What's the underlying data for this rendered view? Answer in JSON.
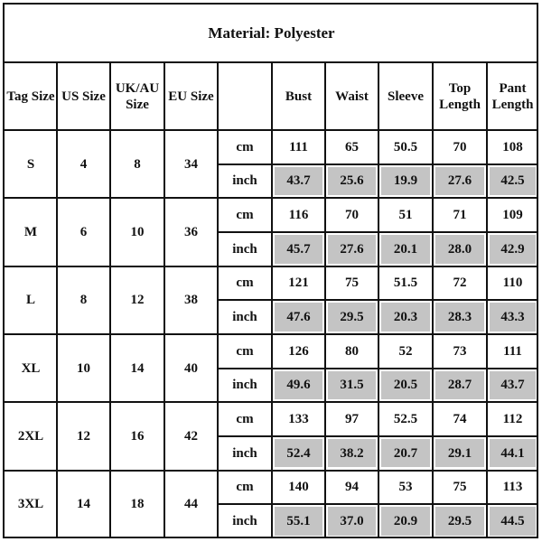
{
  "title": "Material: Polyester",
  "headers": [
    "Tag Size",
    "US Size",
    "UK/AU Size",
    "EU Size",
    "",
    "Bust",
    "Waist",
    "Sleeve",
    "Top Length",
    "Pant Length"
  ],
  "units": [
    "cm",
    "inch"
  ],
  "shade_color": "#c4c4c4",
  "rows": [
    {
      "tag": "S",
      "us": "4",
      "uk": "8",
      "eu": "34",
      "cm": [
        "111",
        "65",
        "50.5",
        "70",
        "108"
      ],
      "inch": [
        "43.7",
        "25.6",
        "19.9",
        "27.6",
        "42.5"
      ]
    },
    {
      "tag": "M",
      "us": "6",
      "uk": "10",
      "eu": "36",
      "cm": [
        "116",
        "70",
        "51",
        "71",
        "109"
      ],
      "inch": [
        "45.7",
        "27.6",
        "20.1",
        "28.0",
        "42.9"
      ]
    },
    {
      "tag": "L",
      "us": "8",
      "uk": "12",
      "eu": "38",
      "cm": [
        "121",
        "75",
        "51.5",
        "72",
        "110"
      ],
      "inch": [
        "47.6",
        "29.5",
        "20.3",
        "28.3",
        "43.3"
      ]
    },
    {
      "tag": "XL",
      "us": "10",
      "uk": "14",
      "eu": "40",
      "cm": [
        "126",
        "80",
        "52",
        "73",
        "111"
      ],
      "inch": [
        "49.6",
        "31.5",
        "20.5",
        "28.7",
        "43.7"
      ]
    },
    {
      "tag": "2XL",
      "us": "12",
      "uk": "16",
      "eu": "42",
      "cm": [
        "133",
        "97",
        "52.5",
        "74",
        "112"
      ],
      "inch": [
        "52.4",
        "38.2",
        "20.7",
        "29.1",
        "44.1"
      ]
    },
    {
      "tag": "3XL",
      "us": "14",
      "uk": "18",
      "eu": "44",
      "cm": [
        "140",
        "94",
        "53",
        "75",
        "113"
      ],
      "inch": [
        "55.1",
        "37.0",
        "20.9",
        "29.5",
        "44.5"
      ]
    }
  ]
}
